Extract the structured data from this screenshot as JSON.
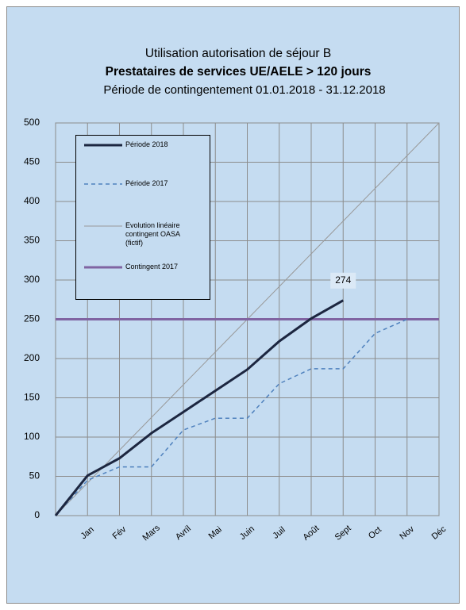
{
  "chart_data": {
    "type": "line",
    "title": "Utilisation autorisation de séjour B",
    "subtitle": "Prestataires de services UE/AELE > 120 jours",
    "subtitle2": "Période de contingentement 01.01.2018 - 31.12.2018",
    "categories": [
      null,
      "Jan",
      "Fév",
      "Mars",
      "Avril",
      "Mai",
      "Juin",
      "Juil",
      "Août",
      "Sept",
      "Oct",
      "Nov",
      "Déc"
    ],
    "series": [
      {
        "name": "Période 2018",
        "color": "#1c2640",
        "dash": false,
        "width": 3,
        "values": [
          0,
          51,
          73,
          105,
          132,
          159,
          186,
          222,
          251,
          274,
          null,
          null,
          null
        ],
        "value_labels": [
          null,
          null,
          null,
          null,
          null,
          null,
          null,
          null,
          null,
          "274",
          null,
          null,
          null
        ]
      },
      {
        "name": "Période 2017",
        "color": "#4f81bd",
        "dash": true,
        "width": 1.5,
        "values": [
          0,
          45,
          62,
          62,
          109,
          124,
          124,
          168,
          187,
          187,
          232,
          250,
          null
        ]
      },
      {
        "name": "Evolution linéaire contingent OASA (fictif)",
        "color": "#999999",
        "dash": false,
        "width": 1,
        "values": [
          0,
          41.7,
          83.3,
          125,
          166.7,
          208.3,
          250,
          291.7,
          333.3,
          375,
          416.7,
          458.3,
          500
        ]
      },
      {
        "name": "Contingent 2017",
        "color": "#8064a2",
        "dash": false,
        "width": 3,
        "values": [
          250,
          250,
          250,
          250,
          250,
          250,
          250,
          250,
          250,
          250,
          250,
          250,
          250
        ]
      }
    ],
    "ylim": [
      0,
      500
    ],
    "yticks": [
      0,
      50,
      100,
      150,
      200,
      250,
      300,
      350,
      400,
      450,
      500
    ],
    "grid": true,
    "legend": "upper left"
  }
}
